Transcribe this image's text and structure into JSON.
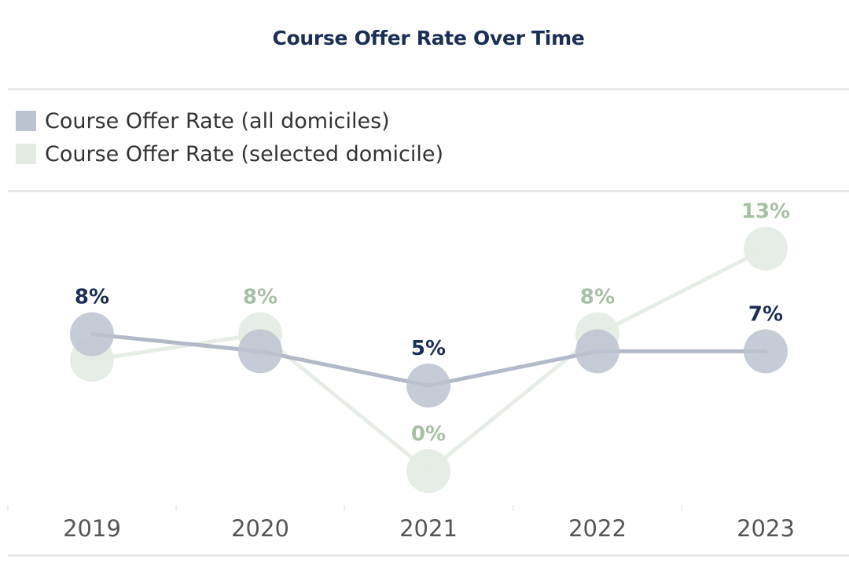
{
  "chart_data": {
    "type": "line",
    "title": "Course Offer Rate Over Time",
    "categories": [
      "2019",
      "2020",
      "2021",
      "2022",
      "2023"
    ],
    "series": [
      {
        "name": "Course Offer Rate (all domiciles)",
        "values": [
          8,
          7,
          5,
          7,
          7
        ],
        "labels": [
          "8%",
          "",
          "5%",
          "",
          "7%"
        ],
        "color": "#bcc3d0",
        "line_color": "#b3bac7",
        "label_color": "#1b2f55"
      },
      {
        "name": "Course Offer Rate (selected domicile)",
        "values": [
          6.5,
          8,
          0,
          8,
          13
        ],
        "labels": [
          "",
          "8%",
          "0%",
          "8%",
          "13%"
        ],
        "color": "#e3ebe3",
        "line_color": "#e6ede6",
        "label_color": "#a6c0a4"
      }
    ],
    "xlabel": "",
    "ylabel": "",
    "ylim": [
      0,
      14
    ],
    "grid": false,
    "legend_position": "top"
  }
}
